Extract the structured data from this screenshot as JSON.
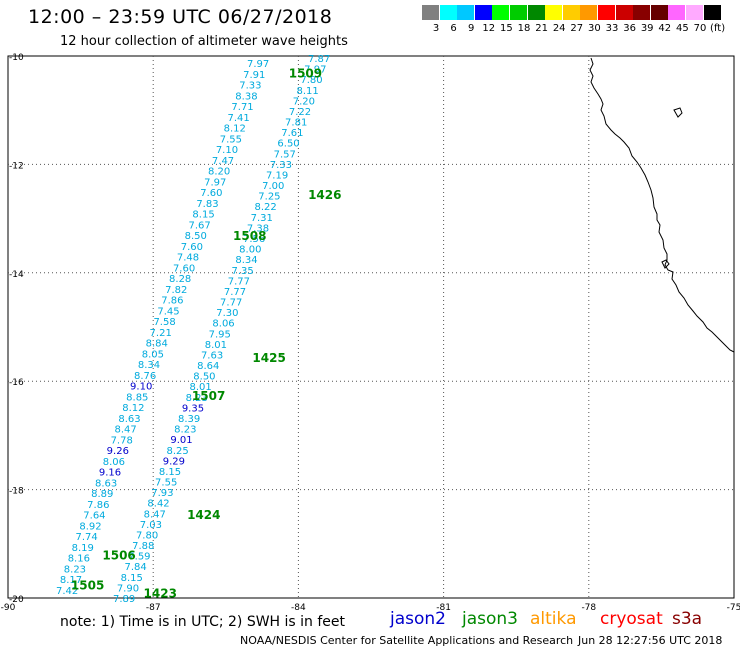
{
  "title": "12:00 – 23:59 UTC 06/27/2018",
  "subtitle": "12 hour collection of altimeter wave heights",
  "colorbar": {
    "colors": [
      "#808080",
      "#00ffff",
      "#00c8ff",
      "#0000ff",
      "#00ff00",
      "#00cc00",
      "#008800",
      "#ffff00",
      "#ffcc00",
      "#ff9900",
      "#ff0000",
      "#cc0000",
      "#880000",
      "#660000",
      "#ff66ff",
      "#ffaaff",
      "#000000"
    ],
    "labels": [
      "3",
      "6",
      "9",
      "12",
      "15",
      "18",
      "21",
      "24",
      "27",
      "30",
      "33",
      "36",
      "39",
      "42",
      "45",
      "70",
      "(ft)"
    ]
  },
  "axes": {
    "x_ticks": [
      "-90",
      "-87",
      "-84",
      "-81",
      "-78",
      "-75"
    ],
    "y_ticks": [
      "-10",
      "-12",
      "-14",
      "-16",
      "-18",
      "-20"
    ]
  },
  "tracks": [
    {
      "values": [
        "7.97",
        "7.91",
        "7.33",
        "8.38",
        "7.71",
        "7.41",
        "8.12",
        "7.55",
        "7.10",
        "7.47",
        "8.20",
        "7.97",
        "7.60",
        "7.83",
        "8.15",
        "7.67",
        "8.50",
        "7.60",
        "7.48",
        "7.60",
        "8.28",
        "7.82",
        "7.86",
        "7.45",
        "7.58",
        "7.21",
        "8.84",
        "8.05",
        "8.34",
        "8.76",
        "9.10",
        "8.85",
        "8.12",
        "8.63",
        "8.47",
        "7.78",
        "9.26",
        "8.06",
        "9.16",
        "8.63",
        "8.89",
        "7.86",
        "7.64",
        "8.92",
        "7.74",
        "8.19",
        "8.16",
        "8.23",
        "8.17",
        "7.42"
      ],
      "colors": [
        "c",
        "c",
        "c",
        "c",
        "c",
        "c",
        "c",
        "c",
        "c",
        "c",
        "c",
        "c",
        "c",
        "c",
        "c",
        "c",
        "c",
        "c",
        "c",
        "c",
        "c",
        "c",
        "c",
        "c",
        "c",
        "c",
        "c",
        "c",
        "c",
        "c",
        "b",
        "c",
        "c",
        "c",
        "c",
        "c",
        "b",
        "c",
        "b",
        "c",
        "c",
        "c",
        "c",
        "c",
        "c",
        "c",
        "c",
        "c",
        "c",
        "c"
      ]
    },
    {
      "values": [
        "7.87",
        "7.97",
        "7.80",
        "8.11",
        "7.20",
        "7.22",
        "7.81",
        "7.61",
        "6.50",
        "7.57",
        "7.33",
        "7.19",
        "7.00",
        "7.25",
        "8.22",
        "7.31",
        "7.38",
        "7.56",
        "8.00",
        "8.34",
        "7.35",
        "7.77",
        "7.77",
        "7.77",
        "7.30",
        "8.06",
        "7.95",
        "8.01",
        "7.63",
        "8.64",
        "8.50",
        "8.01",
        "8.23",
        "9.35",
        "8.39",
        "8.23",
        "9.01",
        "8.25",
        "9.29",
        "8.15",
        "7.55",
        "7.93",
        "8.42",
        "8.47",
        "7.03",
        "7.80",
        "7.88",
        "7.59",
        "7.84",
        "8.15",
        "7.90",
        "7.89"
      ],
      "colors": [
        "c",
        "c",
        "c",
        "c",
        "c",
        "c",
        "c",
        "c",
        "c",
        "c",
        "c",
        "c",
        "c",
        "c",
        "c",
        "c",
        "c",
        "c",
        "c",
        "c",
        "c",
        "c",
        "c",
        "c",
        "c",
        "c",
        "c",
        "c",
        "c",
        "c",
        "c",
        "c",
        "c",
        "b",
        "c",
        "c",
        "b",
        "c",
        "b",
        "c",
        "c",
        "c",
        "c",
        "c",
        "c",
        "c",
        "c",
        "c",
        "c",
        "c",
        "c",
        "c"
      ]
    }
  ],
  "time_labels": [
    {
      "text": "1509",
      "lon": -84.2,
      "lat": -10.3
    },
    {
      "text": "1426",
      "lon": -83.8,
      "lat": -12.55
    },
    {
      "text": "1508",
      "lon": -85.35,
      "lat": -13.3
    },
    {
      "text": "1425",
      "lon": -84.95,
      "lat": -15.55
    },
    {
      "text": "1507",
      "lon": -86.2,
      "lat": -16.25
    },
    {
      "text": "1424",
      "lon": -86.3,
      "lat": -18.45
    },
    {
      "text": "1506",
      "lon": -88.05,
      "lat": -19.2
    },
    {
      "text": "1505",
      "lon": -88.7,
      "lat": -19.75
    },
    {
      "text": "1423",
      "lon": -87.2,
      "lat": -19.9
    }
  ],
  "note": "note: 1) Time is in UTC; 2) SWH is in feet",
  "satellites": [
    {
      "name": "jason2",
      "color": "#0000cc"
    },
    {
      "name": "jason3",
      "color": "#008800"
    },
    {
      "name": "altika",
      "color": "#ff9900"
    },
    {
      "name": "cryosat",
      "color": "#ff0000"
    },
    {
      "name": "s3a",
      "color": "#880000"
    }
  ],
  "credit": "NOAA/NESDIS Center for Satellite Applications and Research",
  "timestamp": "Jun 28 12:27:56 UTC 2018"
}
